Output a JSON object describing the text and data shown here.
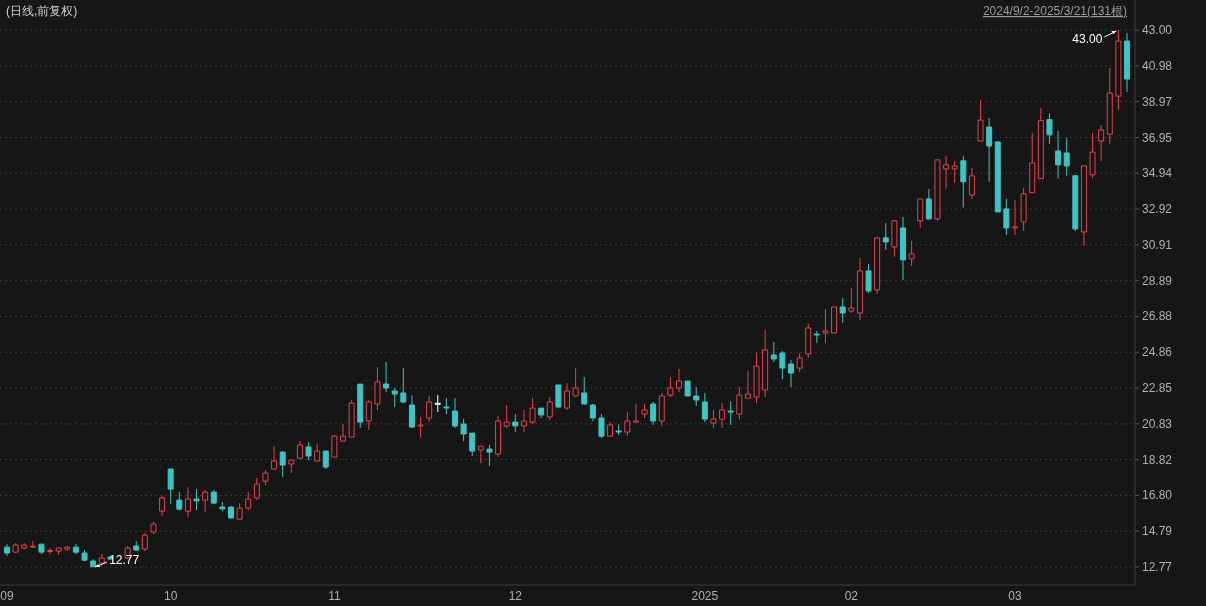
{
  "chart_data": {
    "type": "candlestick",
    "title": "(日线,前复权)",
    "annotations": [
      "2024/9/2-2025/3/21(131根)",
      "43.00",
      "12.77"
    ],
    "categories": [
      "09",
      null,
      null,
      null,
      null,
      null,
      null,
      null,
      null,
      null,
      null,
      null,
      null,
      null,
      null,
      null,
      null,
      null,
      null,
      "10",
      null,
      null,
      null,
      null,
      null,
      null,
      null,
      null,
      null,
      null,
      null,
      null,
      null,
      null,
      null,
      null,
      null,
      null,
      "11",
      null,
      null,
      null,
      null,
      null,
      null,
      null,
      null,
      null,
      null,
      null,
      null,
      null,
      null,
      null,
      null,
      null,
      null,
      null,
      null,
      "12",
      null,
      null,
      null,
      null,
      null,
      null,
      null,
      null,
      null,
      null,
      null,
      null,
      null,
      null,
      null,
      null,
      null,
      null,
      null,
      null,
      null,
      "2025",
      null,
      null,
      null,
      null,
      null,
      null,
      null,
      null,
      null,
      null,
      null,
      null,
      null,
      null,
      null,
      null,
      "02",
      null,
      null,
      null,
      null,
      null,
      null,
      null,
      null,
      null,
      null,
      null,
      null,
      null,
      null,
      null,
      null,
      null,
      null,
      "03",
      null,
      null,
      null,
      null,
      null,
      null,
      null,
      null,
      null,
      null,
      null,
      null,
      null
    ],
    "ohlc": [
      [
        13.89,
        14.06,
        13.39,
        13.56
      ],
      [
        13.61,
        14.12,
        13.56,
        14.01
      ],
      [
        13.84,
        14.12,
        13.78,
        14.01
      ],
      [
        13.9,
        14.23,
        13.84,
        13.95
      ],
      [
        14.06,
        14.06,
        13.5,
        13.61
      ],
      [
        13.65,
        13.84,
        13.5,
        13.7
      ],
      [
        13.67,
        13.84,
        13.45,
        13.84
      ],
      [
        13.78,
        13.95,
        13.67,
        13.89
      ],
      [
        13.89,
        14.06,
        13.5,
        13.61
      ],
      [
        13.56,
        13.73,
        13.1,
        13.16
      ],
      [
        13.11,
        13.22,
        12.77,
        12.79
      ],
      [
        12.99,
        13.5,
        12.88,
        13.28
      ],
      [
        13.33,
        13.39,
        13.16,
        13.22
      ],
      null,
      [
        13.28,
        13.95,
        13.22,
        13.84
      ],
      [
        13.95,
        14.23,
        13.67,
        13.73
      ],
      [
        13.78,
        14.68,
        13.67,
        14.57
      ],
      [
        14.74,
        15.3,
        14.63,
        15.19
      ],
      [
        15.92,
        16.77,
        15.64,
        16.66
      ],
      [
        18.29,
        18.29,
        16.33,
        17.16
      ],
      [
        16.54,
        16.99,
        15.97,
        16.03
      ],
      [
        15.92,
        17.27,
        15.58,
        16.6
      ],
      [
        16.6,
        17.16,
        15.98,
        16.5
      ],
      [
        16.54,
        17.1,
        15.87,
        16.99
      ],
      [
        16.99,
        17.1,
        16.3,
        16.37
      ],
      [
        16.15,
        16.43,
        15.92,
        16.05
      ],
      [
        16.15,
        16.2,
        15.5,
        15.53
      ],
      [
        15.47,
        16.37,
        15.47,
        16.09
      ],
      [
        16.09,
        16.99,
        15.97,
        16.6
      ],
      [
        16.66,
        17.78,
        16.54,
        17.44
      ],
      [
        17.61,
        18.23,
        17.39,
        18.06
      ],
      [
        18.29,
        19.58,
        18.23,
        18.74
      ],
      [
        19.24,
        19.3,
        17.84,
        18.51
      ],
      [
        18.57,
        18.79,
        18.06,
        18.79
      ],
      [
        18.9,
        19.86,
        18.9,
        19.64
      ],
      [
        19.53,
        19.8,
        18.79,
        19.02
      ],
      [
        18.74,
        19.69,
        18.74,
        19.3
      ],
      [
        19.3,
        19.3,
        18.29,
        18.4
      ],
      [
        18.96,
        20.2,
        18.96,
        20.14
      ],
      [
        19.86,
        20.82,
        19.86,
        20.14
      ],
      [
        20.09,
        22.17,
        20.09,
        22.0
      ],
      [
        23.07,
        23.07,
        20.6,
        20.93
      ],
      [
        20.99,
        22.17,
        20.49,
        22.06
      ],
      [
        21.95,
        24.03,
        21.61,
        23.19
      ],
      [
        23.07,
        24.31,
        22.62,
        22.85
      ],
      [
        22.68,
        22.85,
        21.78,
        22.51
      ],
      [
        22.57,
        23.97,
        22.0,
        22.06
      ],
      [
        21.89,
        22.45,
        20.6,
        20.65
      ],
      [
        20.71,
        21.22,
        20.04,
        20.77
      ],
      [
        21.16,
        22.4,
        20.93,
        22.06
      ],
      [
        21.99,
        22.45,
        21.5,
        21.99
      ],
      [
        21.78,
        22.28,
        21.38,
        21.72
      ],
      [
        21.55,
        22.28,
        20.6,
        20.71
      ],
      [
        20.82,
        21.1,
        19.86,
        20.26
      ],
      [
        20.31,
        20.31,
        19.02,
        19.3
      ],
      [
        19.36,
        19.58,
        18.62,
        19.58
      ],
      [
        19.41,
        19.64,
        18.46,
        19.24
      ],
      [
        19.13,
        21.27,
        18.96,
        20.99
      ],
      [
        20.71,
        21.89,
        20.6,
        20.93
      ],
      [
        20.93,
        21.38,
        20.37,
        20.71
      ],
      [
        20.71,
        21.61,
        20.37,
        20.99
      ],
      [
        20.93,
        22.28,
        20.82,
        21.72
      ],
      [
        21.72,
        21.72,
        21.16,
        21.33
      ],
      [
        21.22,
        22.34,
        21.05,
        22.06
      ],
      [
        23.02,
        23.02,
        21.72,
        21.78
      ],
      [
        21.72,
        23.13,
        21.61,
        22.68
      ],
      [
        22.4,
        23.97,
        22.34,
        22.85
      ],
      [
        22.57,
        23.47,
        21.89,
        21.95
      ],
      [
        21.89,
        21.95,
        20.99,
        21.16
      ],
      [
        21.16,
        21.38,
        20.03,
        20.14
      ],
      [
        20.14,
        20.93,
        20.09,
        20.77
      ],
      [
        20.43,
        20.82,
        20.2,
        20.37
      ],
      [
        20.37,
        21.5,
        20.14,
        20.99
      ],
      [
        20.93,
        21.95,
        20.93,
        20.99
      ],
      [
        21.38,
        21.95,
        21.16,
        21.61
      ],
      [
        21.95,
        22.06,
        20.77,
        20.99
      ],
      [
        20.99,
        22.57,
        20.71,
        22.4
      ],
      [
        22.45,
        23.47,
        22.34,
        22.85
      ],
      [
        22.85,
        23.92,
        22.62,
        23.24
      ],
      [
        23.24,
        23.24,
        22.4,
        22.4
      ],
      [
        22.4,
        22.9,
        21.84,
        22.17
      ],
      [
        22.06,
        22.57,
        20.93,
        21.1
      ],
      [
        20.88,
        21.61,
        20.6,
        21.1
      ],
      [
        21.1,
        22.0,
        20.6,
        21.61
      ],
      [
        21.55,
        22.11,
        20.77,
        21.5
      ],
      [
        21.38,
        22.9,
        21.05,
        22.45
      ],
      [
        22.28,
        23.8,
        22.28,
        22.51
      ],
      [
        22.34,
        24.82,
        22.0,
        24.08
      ],
      [
        22.74,
        26.12,
        22.34,
        24.99
      ],
      [
        24.71,
        25.44,
        24.31,
        24.48
      ],
      [
        24.82,
        24.93,
        23.35,
        23.97
      ],
      [
        24.2,
        24.43,
        22.9,
        23.69
      ],
      [
        23.97,
        24.82,
        23.75,
        24.54
      ],
      [
        24.76,
        26.46,
        24.54,
        26.23
      ],
      [
        25.89,
        26.06,
        25.39,
        25.84
      ],
      [
        25.95,
        27.3,
        25.39,
        26.06
      ],
      [
        25.95,
        27.41,
        25.95,
        27.41
      ],
      [
        27.41,
        27.91,
        26.51,
        27.07
      ],
      [
        27.18,
        28.48,
        27.07,
        27.35
      ],
      [
        27.07,
        30.17,
        26.68,
        29.44
      ],
      [
        29.44,
        29.83,
        28.2,
        28.31
      ],
      [
        28.37,
        31.3,
        28.14,
        31.3
      ],
      [
        31.3,
        32.14,
        30.62,
        31.07
      ],
      [
        30.79,
        32.31,
        30.23,
        32.26
      ],
      [
        31.86,
        32.48,
        28.93,
        30.06
      ],
      [
        30.12,
        31.13,
        29.72,
        30.4
      ],
      [
        32.26,
        33.49,
        31.86,
        33.49
      ],
      [
        33.49,
        34.06,
        32.31,
        32.37
      ],
      [
        32.37,
        35.69,
        32.26,
        35.69
      ],
      [
        35.18,
        35.92,
        34.06,
        35.41
      ],
      [
        35.18,
        35.64,
        34.4,
        35.35
      ],
      [
        35.64,
        35.92,
        33.01,
        34.46
      ],
      [
        33.72,
        35.24,
        33.49,
        34.79
      ],
      [
        36.75,
        39.06,
        36.75,
        37.93
      ],
      [
        37.54,
        38.04,
        34.46,
        36.47
      ],
      [
        36.7,
        36.75,
        32.76,
        32.76
      ],
      [
        32.93,
        33.49,
        31.46,
        31.86
      ],
      [
        31.86,
        33.44,
        31.46,
        31.92
      ],
      [
        32.2,
        34.12,
        31.69,
        33.78
      ],
      [
        33.84,
        37.2,
        33.84,
        35.52
      ],
      [
        34.63,
        38.61,
        34.63,
        37.9
      ],
      [
        37.96,
        38.3,
        36.58,
        37.1
      ],
      [
        36.19,
        37.32,
        34.63,
        35.41
      ],
      [
        36.08,
        36.92,
        34.8,
        35.35
      ],
      [
        34.8,
        34.8,
        31.69,
        31.8
      ],
      [
        31.63,
        35.35,
        30.85,
        35.35
      ],
      [
        34.85,
        37.2,
        34.68,
        36.13
      ],
      [
        36.75,
        37.65,
        35.63,
        37.37
      ],
      [
        37.14,
        40.86,
        36.58,
        39.45
      ],
      [
        39.28,
        43.0,
        38.5,
        42.38
      ],
      [
        42.38,
        42.83,
        39.51,
        40.24
      ]
    ],
    "colors": [
      "#3ec4c4",
      "#e8414a",
      "#e8414a",
      "#e8414a",
      "#3ec4c4",
      "#e8414a",
      "#e8414a",
      "#e8414a",
      "#3ec4c4",
      "#3ec4c4",
      "#3ec4c4",
      "#e8414a",
      "#3ec4c4",
      null,
      "#e8414a",
      "#3ec4c4",
      "#e8414a",
      "#e8414a",
      "#e8414a",
      "#3ec4c4",
      "#3ec4c4",
      "#e8414a",
      "#3ec4c4",
      "#e8414a",
      "#3ec4c4",
      "#3ec4c4",
      "#3ec4c4",
      "#e8414a",
      "#e8414a",
      "#e8414a",
      "#e8414a",
      "#e8414a",
      "#3ec4c4",
      "#e8414a",
      "#e8414a",
      "#3ec4c4",
      "#e8414a",
      "#3ec4c4",
      "#e8414a",
      "#e8414a",
      "#e8414a",
      "#3ec4c4",
      "#e8414a",
      "#e8414a",
      "#3ec4c4",
      "#3ec4c4",
      "#3ec4c4",
      "#3ec4c4",
      "#e8414a",
      "#e8414a",
      "#ffffff",
      "#3ec4c4",
      "#3ec4c4",
      "#3ec4c4",
      "#3ec4c4",
      "#e8414a",
      "#3ec4c4",
      "#e8414a",
      "#e8414a",
      "#3ec4c4",
      "#e8414a",
      "#e8414a",
      "#3ec4c4",
      "#e8414a",
      "#3ec4c4",
      "#e8414a",
      "#e8414a",
      "#3ec4c4",
      "#3ec4c4",
      "#3ec4c4",
      "#e8414a",
      "#3ec4c4",
      "#e8414a",
      "#e8414a",
      "#e8414a",
      "#3ec4c4",
      "#e8414a",
      "#e8414a",
      "#e8414a",
      "#3ec4c4",
      "#3ec4c4",
      "#3ec4c4",
      "#e8414a",
      "#e8414a",
      "#3ec4c4",
      "#e8414a",
      "#e8414a",
      "#e8414a",
      "#e8414a",
      "#3ec4c4",
      "#3ec4c4",
      "#3ec4c4",
      "#e8414a",
      "#e8414a",
      "#3ec4c4",
      "#e8414a",
      "#e8414a",
      "#3ec4c4",
      "#e8414a",
      "#e8414a",
      "#3ec4c4",
      "#e8414a",
      "#3ec4c4",
      "#e8414a",
      "#3ec4c4",
      "#e8414a",
      "#e8414a",
      "#3ec4c4",
      "#e8414a",
      "#e8414a",
      "#e8414a",
      "#3ec4c4",
      "#e8414a",
      "#e8414a",
      "#3ec4c4",
      "#3ec4c4",
      "#3ec4c4",
      "#e8414a",
      "#e8414a",
      "#e8414a",
      "#e8414a",
      "#3ec4c4",
      "#3ec4c4",
      "#3ec4c4",
      "#3ec4c4",
      "#e8414a",
      "#e8414a",
      "#e8414a",
      "#e8414a",
      "#e8414a",
      "#3ec4c4"
    ],
    "ylim": [
      11.76,
      44.69
    ],
    "yticks": [
      12.77,
      14.79,
      {
        "value": 16.8,
        "label": "16.80"
      },
      18.82,
      20.83,
      22.85,
      24.86,
      26.88,
      28.89,
      30.91,
      32.92,
      34.94,
      36.95,
      38.97,
      40.98,
      {
        "value": 43,
        "label": "43.00"
      }
    ],
    "grid": "y"
  }
}
